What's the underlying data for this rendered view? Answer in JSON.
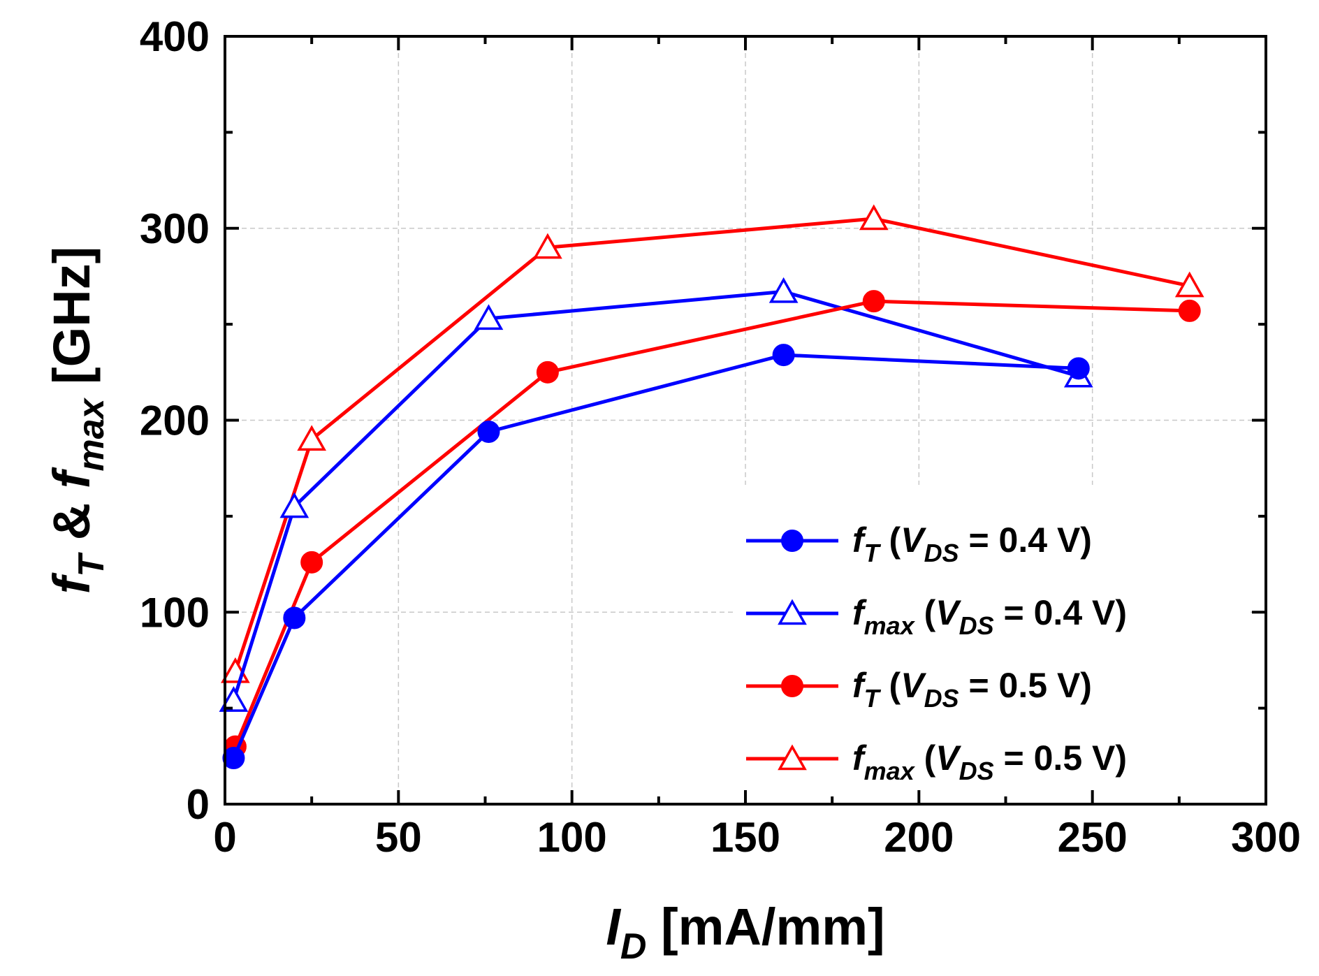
{
  "chart_data": {
    "type": "line",
    "xlabel": {
      "main": "I",
      "sub": "D",
      "unit": " [mA/mm]"
    },
    "ylabel": {
      "f1": "f",
      "s1": "T",
      "amp": " & ",
      "f2": "f",
      "s2": "max",
      "unit": " [GHz]"
    },
    "xlim": [
      0,
      300
    ],
    "ylim": [
      0,
      400
    ],
    "xticks": [
      0,
      50,
      100,
      150,
      200,
      250,
      300
    ],
    "yticks": [
      0,
      100,
      200,
      300,
      400
    ],
    "grid": true,
    "legend_position": "bottom-right",
    "series": [
      {
        "name": "f_T (V_DS = 0.4 V)",
        "legend": {
          "f": "f",
          "sub": "T",
          "open": " (",
          "v": "V",
          "vsub": "DS",
          "rest": " = 0.4 V)"
        },
        "color": "#0000ff",
        "marker": "filled-circle",
        "x": [
          2.5,
          20,
          76,
          161,
          246
        ],
        "y": [
          24,
          97,
          194,
          234,
          227
        ]
      },
      {
        "name": "f_max (V_DS = 0.4 V)",
        "legend": {
          "f": "f",
          "sub": "max",
          "open": " (",
          "v": "V",
          "vsub": "DS",
          "rest": " = 0.4 V)"
        },
        "color": "#0000ff",
        "marker": "open-triangle",
        "x": [
          2.5,
          20,
          76,
          161,
          246
        ],
        "y": [
          54,
          155,
          253,
          267,
          223
        ]
      },
      {
        "name": "f_T (V_DS = 0.5 V)",
        "legend": {
          "f": "f",
          "sub": "T",
          "open": " (",
          "v": "V",
          "vsub": "DS",
          "rest": " = 0.5 V)"
        },
        "color": "#ff0000",
        "marker": "filled-circle",
        "x": [
          3,
          25,
          93,
          187,
          278
        ],
        "y": [
          30,
          126,
          225,
          262,
          257
        ]
      },
      {
        "name": "f_max (V_DS = 0.5 V)",
        "legend": {
          "f": "f",
          "sub": "max",
          "open": " (",
          "v": "V",
          "vsub": "DS",
          "rest": " = 0.5 V)"
        },
        "color": "#ff0000",
        "marker": "open-triangle",
        "x": [
          3,
          25,
          93,
          187,
          278
        ],
        "y": [
          69,
          190,
          290,
          305,
          270
        ]
      }
    ]
  }
}
